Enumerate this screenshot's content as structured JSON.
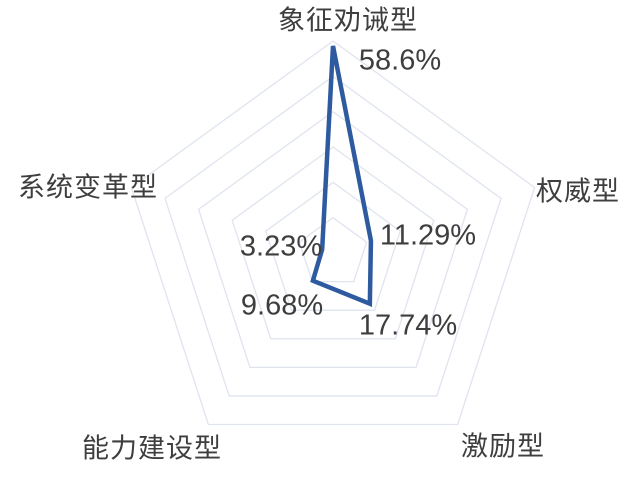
{
  "chart_data": {
    "type": "radar",
    "title": "",
    "categories": [
      "象征劝诫型",
      "权威型",
      "激励型",
      "能力建设型",
      "系统变革型"
    ],
    "values": [
      58.6,
      11.29,
      17.74,
      9.68,
      3.23
    ],
    "data_labels": [
      "58.6%",
      "11.29%",
      "17.74%",
      "9.68%",
      "3.23%"
    ],
    "axis": {
      "min": 0,
      "max": 60,
      "ring_count": 6,
      "tick_labels_visible": false
    },
    "legend": {
      "visible": false
    },
    "grid": true,
    "styles": {
      "series_color": "#2e5aa0",
      "grid_color": "#dfe4ee",
      "label_color": "#3e3e3e",
      "background_color": "#ffffff"
    }
  }
}
